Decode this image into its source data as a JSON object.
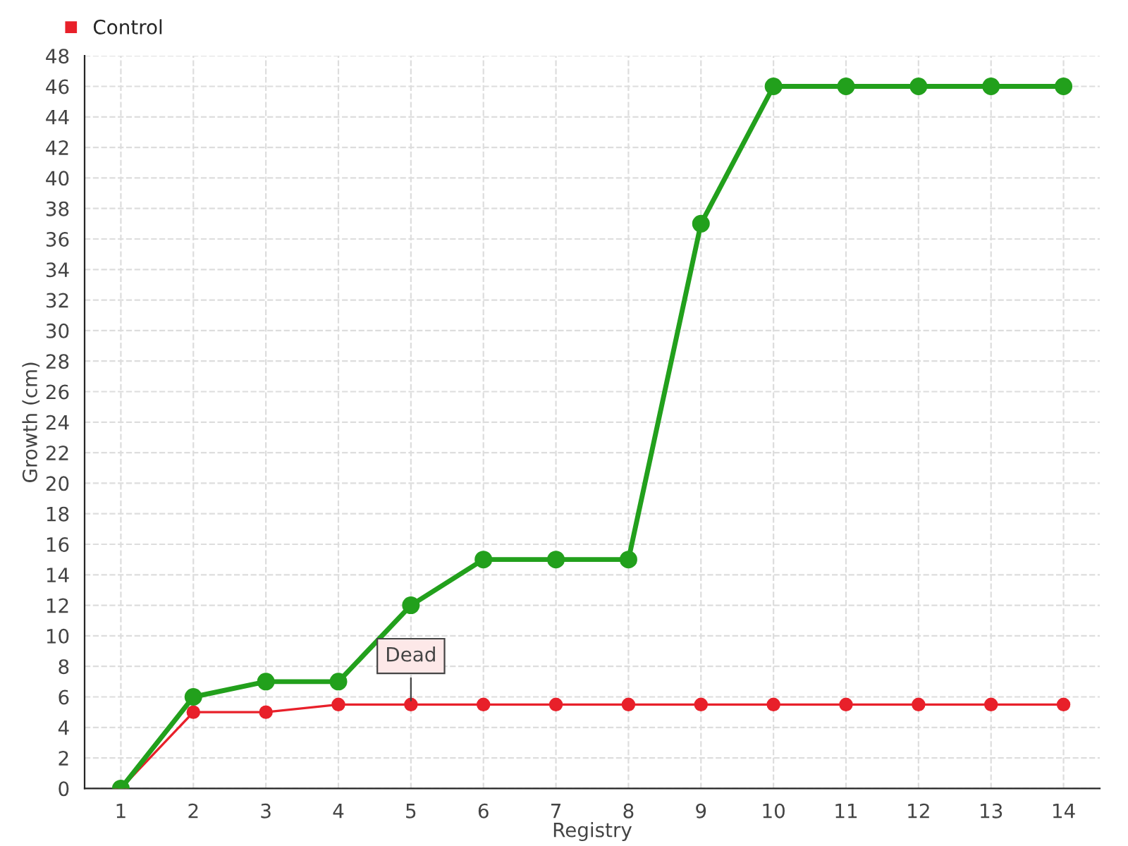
{
  "chart_data": {
    "type": "line",
    "xlabel": "Registry",
    "ylabel": "Growth (cm)",
    "categories": [
      "1",
      "2",
      "3",
      "4",
      "5",
      "6",
      "7",
      "8",
      "9",
      "10",
      "11",
      "12",
      "13",
      "14"
    ],
    "series": [
      {
        "color": "#22a01c",
        "values": [
          0,
          6,
          7,
          7,
          12,
          15,
          15,
          15,
          37,
          46,
          46,
          46,
          46,
          46
        ]
      },
      {
        "name": "Control",
        "color": "#e8202a",
        "values": [
          0,
          5,
          5,
          5.5,
          5.5,
          5.5,
          5.5,
          5.5,
          5.5,
          5.5,
          5.5,
          5.5,
          5.5,
          5.5
        ]
      }
    ],
    "annotations": [
      {
        "text": "Dead",
        "x": "5",
        "y": 5.5
      }
    ],
    "ylim": [
      0,
      48
    ],
    "yticks": [
      0,
      2,
      4,
      6,
      8,
      10,
      12,
      14,
      16,
      18,
      20,
      22,
      24,
      26,
      28,
      30,
      32,
      34,
      36,
      38,
      40,
      42,
      44,
      46,
      48
    ],
    "grid": true,
    "legend": "top left",
    "marker": "circle",
    "line_style": "solid"
  }
}
